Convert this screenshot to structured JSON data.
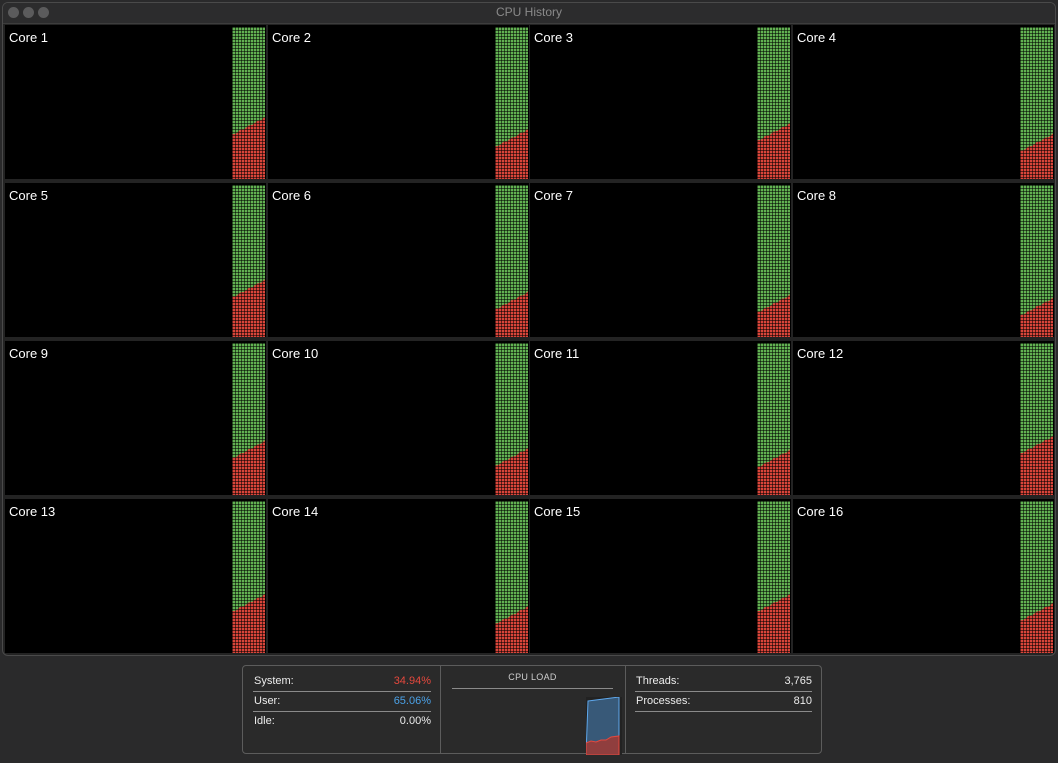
{
  "window": {
    "title": "CPU History"
  },
  "cores": [
    {
      "label": "Core 1",
      "load": 0.41
    },
    {
      "label": "Core 2",
      "load": 0.33
    },
    {
      "label": "Core 3",
      "load": 0.37
    },
    {
      "label": "Core 4",
      "load": 0.3
    },
    {
      "label": "Core 5",
      "load": 0.38
    },
    {
      "label": "Core 6",
      "load": 0.3
    },
    {
      "label": "Core 7",
      "load": 0.28
    },
    {
      "label": "Core 8",
      "load": 0.26
    },
    {
      "label": "Core 9",
      "load": 0.36
    },
    {
      "label": "Core 10",
      "load": 0.31
    },
    {
      "label": "Core 11",
      "load": 0.3
    },
    {
      "label": "Core 12",
      "load": 0.39
    },
    {
      "label": "Core 13",
      "load": 0.39
    },
    {
      "label": "Core 14",
      "load": 0.31
    },
    {
      "label": "Core 15",
      "load": 0.39
    },
    {
      "label": "Core 16",
      "load": 0.33
    }
  ],
  "stats": {
    "system_label": "System:",
    "system_value": "34.94%",
    "user_label": "User:",
    "user_value": "65.06%",
    "idle_label": "Idle:",
    "idle_value": "0.00%",
    "load_title": "CPU LOAD",
    "threads_label": "Threads:",
    "threads_value": "3,765",
    "processes_label": "Processes:",
    "processes_value": "810"
  },
  "colors": {
    "system": "#e5483d",
    "user": "#4ba2e8",
    "idle_bar": "#62b152",
    "system_bar": "#d9453a"
  }
}
